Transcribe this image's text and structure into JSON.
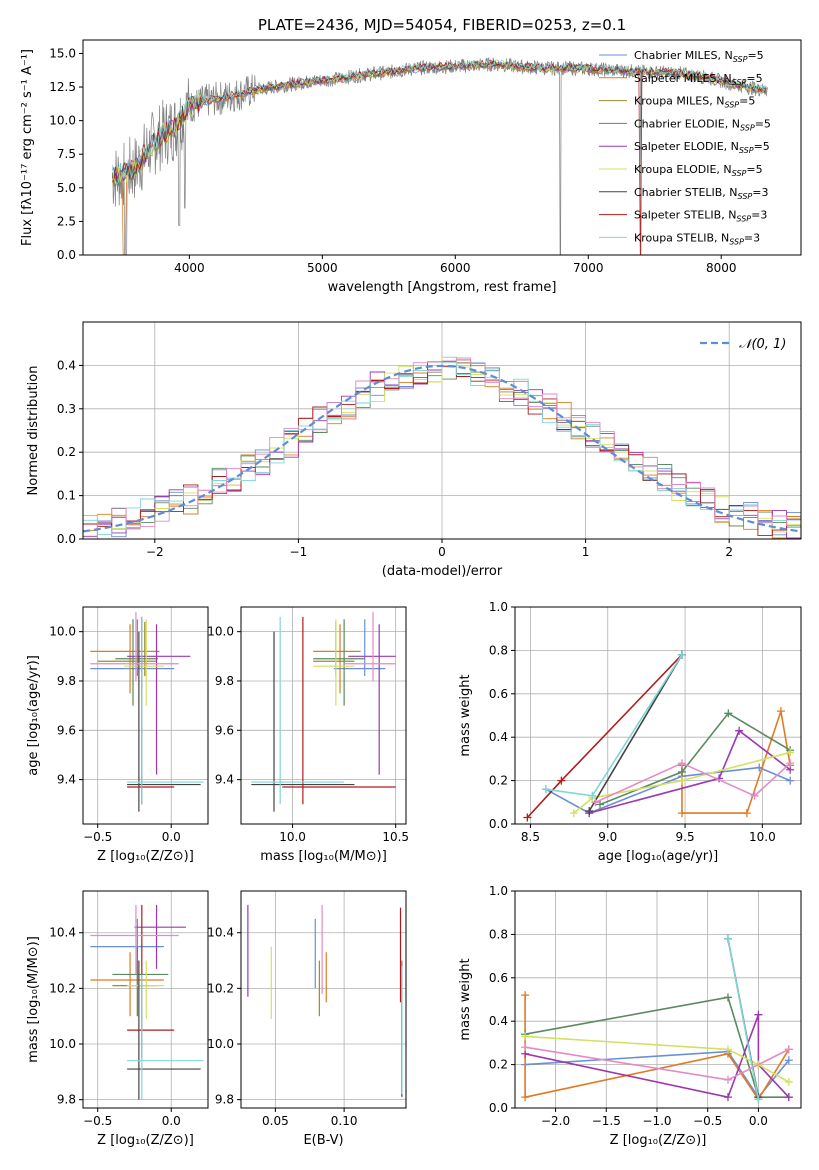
{
  "colors": [
    "#6a8fd6",
    "#e07b22",
    "#9c8b2f",
    "#5b8a62",
    "#9b38b0",
    "#d4e060",
    "#444444",
    "#b01c1c",
    "#7fd6d8",
    "#e58ac4"
  ],
  "legend": [
    {
      "label": "Chabrier MILES, N",
      "sub": "SSP",
      "tail": "=5"
    },
    {
      "label": "Salpeter MILES, N",
      "sub": "SSP",
      "tail": "=5"
    },
    {
      "label": "Kroupa MILES, N",
      "sub": "SSP",
      "tail": "=5"
    },
    {
      "label": "Chabrier ELODIE, N",
      "sub": "SSP",
      "tail": "=5"
    },
    {
      "label": "Salpeter ELODIE, N",
      "sub": "SSP",
      "tail": "=5"
    },
    {
      "label": "Kroupa ELODIE, N",
      "sub": "SSP",
      "tail": "=5"
    },
    {
      "label": "Chabrier STELIB, N",
      "sub": "SSP",
      "tail": "=3"
    },
    {
      "label": "Salpeter STELIB, N",
      "sub": "SSP",
      "tail": "=3"
    },
    {
      "label": "Kroupa STELIB, N",
      "sub": "SSP",
      "tail": "=3"
    }
  ],
  "chart_data": [
    {
      "type": "line",
      "title": "PLATE=2436, MJD=54054, FIBERID=0253, z=0.1",
      "xlabel": "wavelength [Angstrom, rest frame]",
      "ylabel": "Flux [fλ10⁻¹⁷ erg cm⁻² s⁻¹ A⁻¹]",
      "xlim": [
        3200,
        8600
      ],
      "ylim": [
        0,
        16
      ],
      "xticks": [
        "4000",
        "5000",
        "6000",
        "7000",
        "8000"
      ],
      "xtick_values": [
        4000,
        5000,
        6000,
        7000,
        8000
      ],
      "yticks": [
        "0.0",
        "2.5",
        "5.0",
        "7.5",
        "10.0",
        "12.5",
        "15.0"
      ],
      "ytick_values": [
        0,
        2.5,
        5,
        7.5,
        10,
        12.5,
        15
      ],
      "continuum_x": [
        3450,
        3600,
        3700,
        3800,
        3900,
        3950,
        4000,
        4100,
        4300,
        4500,
        4700,
        4900,
        5100,
        5300,
        5500,
        5700,
        5900,
        6100,
        6300,
        6500,
        6700,
        6900,
        7100,
        7300,
        7500,
        7700,
        7900,
        8100,
        8300
      ],
      "continuum_y": [
        5.8,
        6.5,
        8.0,
        9.0,
        9.6,
        10.5,
        11.0,
        11.4,
        11.8,
        12.3,
        12.6,
        12.9,
        13.1,
        13.4,
        13.6,
        13.9,
        14.0,
        14.1,
        14.2,
        14.0,
        13.9,
        13.9,
        13.8,
        13.7,
        13.6,
        13.5,
        13.2,
        12.7,
        12.3
      ]
    },
    {
      "type": "bar",
      "xlabel": "(data-model)/error",
      "ylabel": "Normed distribution",
      "xlim": [
        -2.5,
        2.5
      ],
      "ylim": [
        0,
        0.5
      ],
      "xticks": [
        "−2",
        "−1",
        "0",
        "1",
        "2"
      ],
      "xtick_values": [
        -2,
        -1,
        0,
        1,
        2
      ],
      "yticks": [
        "0.0",
        "0.1",
        "0.2",
        "0.3",
        "0.4"
      ],
      "ytick_values": [
        0,
        0.1,
        0.2,
        0.3,
        0.4
      ],
      "series_label": "𝒩(0, 1)",
      "bins": [
        -2.5,
        -2.4,
        -2.3,
        -2.2,
        -2.1,
        -2.0,
        -1.9,
        -1.8,
        -1.7,
        -1.6,
        -1.5,
        -1.4,
        -1.3,
        -1.2,
        -1.1,
        -1.0,
        -0.9,
        -0.8,
        -0.7,
        -0.6,
        -0.5,
        -0.4,
        -0.3,
        -0.2,
        -0.1,
        0.0,
        0.1,
        0.2,
        0.3,
        0.4,
        0.5,
        0.6,
        0.7,
        0.8,
        0.9,
        1.0,
        1.1,
        1.2,
        1.3,
        1.4,
        1.5,
        1.6,
        1.7,
        1.8,
        1.9,
        2.0,
        2.1,
        2.2,
        2.3,
        2.4
      ],
      "hist_values": [
        0.025,
        0.03,
        0.04,
        0.05,
        0.06,
        0.07,
        0.08,
        0.09,
        0.11,
        0.13,
        0.14,
        0.16,
        0.18,
        0.2,
        0.22,
        0.25,
        0.27,
        0.29,
        0.31,
        0.33,
        0.35,
        0.36,
        0.37,
        0.38,
        0.39,
        0.4,
        0.39,
        0.38,
        0.37,
        0.35,
        0.34,
        0.32,
        0.3,
        0.28,
        0.26,
        0.24,
        0.22,
        0.2,
        0.18,
        0.16,
        0.14,
        0.12,
        0.1,
        0.09,
        0.07,
        0.06,
        0.05,
        0.04,
        0.035,
        0.03
      ]
    },
    {
      "type": "scatter",
      "xlabel": "Z [log₁₀(Z/Z⊙)]",
      "ylabel": "age  [log₁₀(age/yr)]",
      "xlim": [
        -0.6,
        0.25
      ],
      "ylim": [
        9.22,
        10.1
      ],
      "xticks": [
        "−0.5",
        "0.0"
      ],
      "xtick_values": [
        -0.5,
        0.0
      ],
      "yticks": [
        "9.4",
        "9.6",
        "9.8",
        "10.0"
      ],
      "ytick_values": [
        9.4,
        9.6,
        9.8,
        10.0
      ],
      "points": [
        {
          "x": -0.23,
          "y": 9.85,
          "xlo": -0.55,
          "xhi": 0.02,
          "ylo": 9.82,
          "yhi": 10.05,
          "c": 0
        },
        {
          "x": -0.28,
          "y": 9.92,
          "xlo": -0.55,
          "xhi": -0.08,
          "ylo": 9.75,
          "yhi": 10.03,
          "c": 1
        },
        {
          "x": -0.18,
          "y": 9.88,
          "xlo": -0.5,
          "xhi": -0.1,
          "ylo": 9.82,
          "yhi": 10.04,
          "c": 2
        },
        {
          "x": -0.26,
          "y": 9.89,
          "xlo": -0.38,
          "xhi": -0.09,
          "ylo": 9.7,
          "yhi": 10.05,
          "c": 3
        },
        {
          "x": -0.1,
          "y": 9.9,
          "xlo": -0.3,
          "xhi": 0.13,
          "ylo": 9.42,
          "yhi": 10.03,
          "c": 4
        },
        {
          "x": -0.17,
          "y": 9.86,
          "xlo": -0.32,
          "xhi": -0.05,
          "ylo": 9.7,
          "yhi": 10.05,
          "c": 5
        },
        {
          "x": -0.22,
          "y": 9.38,
          "xlo": -0.3,
          "xhi": 0.2,
          "ylo": 9.27,
          "yhi": 10.0,
          "c": 6
        },
        {
          "x": -0.2,
          "y": 9.37,
          "xlo": -0.3,
          "xhi": 0.02,
          "ylo": 9.3,
          "yhi": 10.06,
          "c": 7
        },
        {
          "x": -0.2,
          "y": 9.39,
          "xlo": -0.3,
          "xhi": 0.22,
          "ylo": 9.3,
          "yhi": 10.06,
          "c": 8
        },
        {
          "x": -0.24,
          "y": 9.87,
          "xlo": -0.55,
          "xhi": 0.05,
          "ylo": 9.8,
          "yhi": 10.08,
          "c": 9
        }
      ]
    },
    {
      "type": "scatter",
      "xlabel": "mass [log₁₀(M/M⊙)]",
      "ylabel": "",
      "xlim": [
        9.75,
        10.55
      ],
      "ylim": [
        9.22,
        10.1
      ],
      "xticks": [
        "10.0",
        "10.5"
      ],
      "xtick_values": [
        10.0,
        10.5
      ],
      "yticks": [
        "9.4",
        "9.6",
        "9.8",
        "10.0"
      ],
      "ytick_values": [
        9.4,
        9.6,
        9.8,
        10.0
      ],
      "points": [
        {
          "x": 10.35,
          "y": 9.85,
          "xlo": 10.2,
          "xhi": 10.45,
          "ylo": 9.82,
          "yhi": 10.05,
          "c": 0
        },
        {
          "x": 10.23,
          "y": 9.92,
          "xlo": 10.1,
          "xhi": 10.33,
          "ylo": 9.75,
          "yhi": 10.03,
          "c": 1
        },
        {
          "x": 10.21,
          "y": 9.88,
          "xlo": 10.1,
          "xhi": 10.3,
          "ylo": 9.82,
          "yhi": 10.04,
          "c": 2
        },
        {
          "x": 10.25,
          "y": 9.89,
          "xlo": 10.1,
          "xhi": 10.35,
          "ylo": 9.7,
          "yhi": 10.05,
          "c": 3
        },
        {
          "x": 10.42,
          "y": 9.9,
          "xlo": 10.27,
          "xhi": 10.5,
          "ylo": 9.42,
          "yhi": 10.03,
          "c": 4
        },
        {
          "x": 10.21,
          "y": 9.86,
          "xlo": 10.1,
          "xhi": 10.3,
          "ylo": 9.7,
          "yhi": 10.05,
          "c": 5
        },
        {
          "x": 9.91,
          "y": 9.38,
          "xlo": 9.8,
          "xhi": 10.3,
          "ylo": 9.27,
          "yhi": 10.0,
          "c": 6
        },
        {
          "x": 10.05,
          "y": 9.37,
          "xlo": 9.95,
          "xhi": 10.5,
          "ylo": 9.3,
          "yhi": 10.06,
          "c": 7
        },
        {
          "x": 9.94,
          "y": 9.39,
          "xlo": 9.8,
          "xhi": 10.25,
          "ylo": 9.3,
          "yhi": 10.06,
          "c": 8
        },
        {
          "x": 10.39,
          "y": 9.87,
          "xlo": 10.25,
          "xhi": 10.5,
          "ylo": 9.8,
          "yhi": 10.08,
          "c": 9
        }
      ]
    },
    {
      "type": "line",
      "xlabel": "age  [log₁₀(age/yr)]",
      "ylabel": "mass weight",
      "xlim": [
        8.4,
        10.25
      ],
      "ylim": [
        0,
        1.0
      ],
      "xticks": [
        "8.5",
        "9.0",
        "9.5",
        "10.0"
      ],
      "xtick_values": [
        8.5,
        9.0,
        9.5,
        10.0
      ],
      "yticks": [
        "0.0",
        "0.2",
        "0.4",
        "0.6",
        "0.8",
        "1.0"
      ],
      "ytick_values": [
        0,
        0.2,
        0.4,
        0.6,
        0.8,
        1.0
      ],
      "series": [
        {
          "c": 0,
          "x": [
            8.6,
            8.88,
            9.48,
            9.98,
            10.18
          ],
          "y": [
            0.16,
            0.05,
            0.22,
            0.26,
            0.2
          ]
        },
        {
          "c": 1,
          "x": [
            9.48,
            9.48,
            9.9,
            10.12,
            10.18
          ],
          "y": [
            0.27,
            0.05,
            0.05,
            0.52,
            0.27
          ]
        },
        {
          "c": 3,
          "x": [
            8.95,
            9.48,
            9.78,
            10.18
          ],
          "y": [
            0.09,
            0.24,
            0.51,
            0.34
          ]
        },
        {
          "c": 4,
          "x": [
            8.88,
            9.72,
            9.85,
            10.18
          ],
          "y": [
            0.05,
            0.21,
            0.43,
            0.25
          ]
        },
        {
          "c": 5,
          "x": [
            8.78,
            8.9,
            9.48,
            10.18
          ],
          "y": [
            0.05,
            0.12,
            0.2,
            0.33
          ]
        },
        {
          "c": 6,
          "x": [
            8.88,
            9.48
          ],
          "y": [
            0.06,
            0.78
          ]
        },
        {
          "c": 7,
          "x": [
            8.48,
            8.7,
            9.48
          ],
          "y": [
            0.03,
            0.2,
            0.78
          ]
        },
        {
          "c": 8,
          "x": [
            8.6,
            8.9,
            9.48
          ],
          "y": [
            0.16,
            0.13,
            0.78
          ]
        },
        {
          "c": 9,
          "x": [
            8.92,
            9.48,
            9.95,
            10.18
          ],
          "y": [
            0.1,
            0.28,
            0.13,
            0.28
          ]
        }
      ]
    },
    {
      "type": "scatter",
      "xlabel": "Z [log₁₀(Z/Z⊙)]",
      "ylabel": "mass [log₁₀(M/M⊙)]",
      "xlim": [
        -0.6,
        0.25
      ],
      "ylim": [
        9.77,
        10.55
      ],
      "xticks": [
        "−0.5",
        "0.0"
      ],
      "xtick_values": [
        -0.5,
        0.0
      ],
      "yticks": [
        "9.8",
        "10.0",
        "10.2",
        "10.4"
      ],
      "ytick_values": [
        9.8,
        10.0,
        10.2,
        10.4
      ],
      "points": [
        {
          "x": -0.23,
          "y": 10.35,
          "xlo": -0.55,
          "xhi": -0.05,
          "ylo": 10.2,
          "yhi": 10.45,
          "c": 0
        },
        {
          "x": -0.28,
          "y": 10.23,
          "xlo": -0.55,
          "xhi": -0.05,
          "ylo": 10.1,
          "yhi": 10.33,
          "c": 1
        },
        {
          "x": -0.23,
          "y": 10.21,
          "xlo": -0.4,
          "xhi": -0.1,
          "ylo": 10.1,
          "yhi": 10.3,
          "c": 2
        },
        {
          "x": -0.23,
          "y": 10.25,
          "xlo": -0.4,
          "xhi": -0.02,
          "ylo": 10.1,
          "yhi": 10.35,
          "c": 3
        },
        {
          "x": -0.1,
          "y": 10.42,
          "xlo": -0.25,
          "xhi": 0.1,
          "ylo": 10.27,
          "yhi": 10.5,
          "c": 4
        },
        {
          "x": -0.17,
          "y": 10.21,
          "xlo": -0.3,
          "xhi": -0.05,
          "ylo": 10.09,
          "yhi": 10.3,
          "c": 5
        },
        {
          "x": -0.22,
          "y": 9.91,
          "xlo": -0.3,
          "xhi": 0.2,
          "ylo": 9.8,
          "yhi": 10.3,
          "c": 6
        },
        {
          "x": -0.2,
          "y": 10.05,
          "xlo": -0.3,
          "xhi": 0.02,
          "ylo": 9.95,
          "yhi": 10.5,
          "c": 7
        },
        {
          "x": -0.2,
          "y": 9.94,
          "xlo": -0.3,
          "xhi": 0.22,
          "ylo": 9.8,
          "yhi": 10.25,
          "c": 8
        },
        {
          "x": -0.24,
          "y": 10.39,
          "xlo": -0.55,
          "xhi": 0.05,
          "ylo": 10.25,
          "yhi": 10.5,
          "c": 9
        }
      ]
    },
    {
      "type": "scatter",
      "xlabel": "E(B-V)",
      "ylabel": "",
      "xlim": [
        0.025,
        0.145
      ],
      "ylim": [
        9.77,
        10.55
      ],
      "xticks": [
        "0.05",
        "0.10"
      ],
      "xtick_values": [
        0.05,
        0.1
      ],
      "yticks": [
        "9.8",
        "10.0",
        "10.2",
        "10.4"
      ],
      "ytick_values": [
        9.8,
        10.0,
        10.2,
        10.4
      ],
      "points": [
        {
          "x": 0.079,
          "y": 10.35,
          "ylo": 10.2,
          "yhi": 10.45,
          "c": 0
        },
        {
          "x": 0.087,
          "y": 10.23,
          "ylo": 10.15,
          "yhi": 10.33,
          "c": 1
        },
        {
          "x": 0.082,
          "y": 10.21,
          "ylo": 10.1,
          "yhi": 10.3,
          "c": 2
        },
        {
          "x": 0.142,
          "y": 9.95,
          "ylo": 9.82,
          "yhi": 10.3,
          "c": 3
        },
        {
          "x": 0.03,
          "y": 10.42,
          "ylo": 10.17,
          "yhi": 10.5,
          "c": 4
        },
        {
          "x": 0.047,
          "y": 10.21,
          "ylo": 10.09,
          "yhi": 10.35,
          "c": 5
        },
        {
          "x": 0.142,
          "y": 9.91,
          "ylo": 9.81,
          "yhi": 10.28,
          "c": 6
        },
        {
          "x": 0.141,
          "y": 10.3,
          "ylo": 10.15,
          "yhi": 10.49,
          "c": 7
        },
        {
          "x": 0.142,
          "y": 9.94,
          "ylo": 9.82,
          "yhi": 10.28,
          "c": 8
        },
        {
          "x": 0.084,
          "y": 10.39,
          "ylo": 10.18,
          "yhi": 10.5,
          "c": 9
        }
      ]
    },
    {
      "type": "line",
      "xlabel": "Z [log₁₀(Z/Z⊙)]",
      "ylabel": "mass weight",
      "xlim": [
        -2.4,
        0.42
      ],
      "ylim": [
        0,
        1.0
      ],
      "xticks": [
        "−2.0",
        "−1.5",
        "−1.0",
        "−0.5",
        "0.0"
      ],
      "xtick_values": [
        -2.0,
        -1.5,
        -1.0,
        -0.5,
        0.0
      ],
      "yticks": [
        "0.0",
        "0.2",
        "0.4",
        "0.6",
        "0.8",
        "1.0"
      ],
      "ytick_values": [
        0,
        0.2,
        0.4,
        0.6,
        0.8,
        1.0
      ],
      "series": [
        {
          "c": 0,
          "x": [
            -2.3,
            -0.3,
            0.0,
            0.3
          ],
          "y": [
            0.2,
            0.26,
            0.05,
            0.22
          ]
        },
        {
          "c": 1,
          "x": [
            -2.3,
            -2.3,
            -0.3,
            0.0,
            0.3
          ],
          "y": [
            0.52,
            0.05,
            0.25,
            0.04,
            0.27
          ]
        },
        {
          "c": 3,
          "x": [
            -2.3,
            -0.3,
            0.0,
            0.3
          ],
          "y": [
            0.34,
            0.51,
            0.05,
            0.05
          ]
        },
        {
          "c": 4,
          "x": [
            -2.3,
            -0.3,
            0.0,
            0.0,
            0.3
          ],
          "y": [
            0.25,
            0.05,
            0.43,
            0.2,
            0.05
          ]
        },
        {
          "c": 5,
          "x": [
            -2.3,
            -0.3,
            0.0,
            0.3
          ],
          "y": [
            0.33,
            0.27,
            0.2,
            0.12
          ]
        },
        {
          "c": 6,
          "x": [
            -0.3,
            0.0
          ],
          "y": [
            0.78,
            0.05
          ]
        },
        {
          "c": 8,
          "x": [
            -0.3,
            0.0
          ],
          "y": [
            0.78,
            0.04
          ]
        },
        {
          "c": 9,
          "x": [
            -2.3,
            -0.3,
            0.3
          ],
          "y": [
            0.28,
            0.13,
            0.27
          ]
        }
      ]
    }
  ]
}
